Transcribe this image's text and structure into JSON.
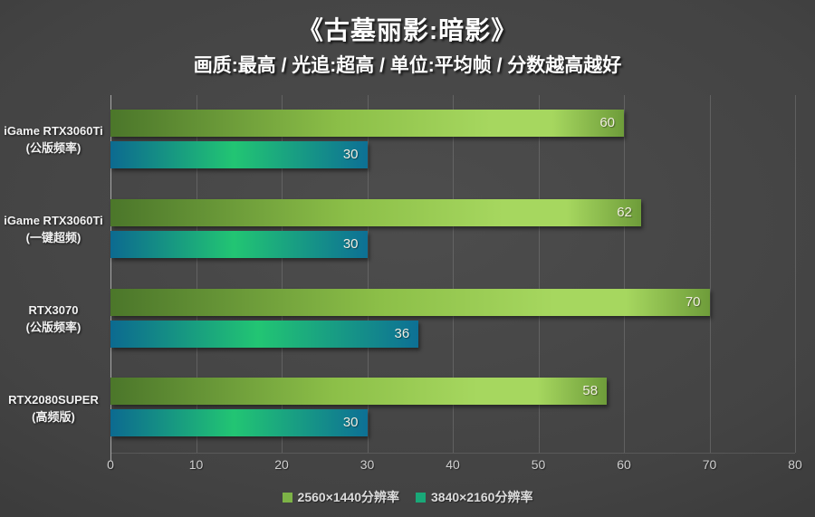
{
  "title": "《古墓丽影:暗影》",
  "subtitle": "画质:最高 / 光追:超高 / 单位:平均帧 / 分数越高越好",
  "chart_data": {
    "type": "bar",
    "orientation": "horizontal",
    "title": "《古墓丽影:暗影》",
    "subtitle": "画质:最高 / 光追:超高 / 单位:平均帧 / 分数越高越好",
    "xlim": [
      0,
      80
    ],
    "xticks": [
      0,
      10,
      20,
      30,
      40,
      50,
      60,
      70,
      80
    ],
    "grid": true,
    "legend_position": "bottom",
    "categories": [
      {
        "line1": "iGame RTX3060Ti",
        "line2": "(公版频率)"
      },
      {
        "line1": "iGame RTX3060Ti",
        "line2": "(一键超频)"
      },
      {
        "line1": "RTX3070",
        "line2": "(公版频率)"
      },
      {
        "line1": "RTX2080SUPER",
        "line2": "(高频版)"
      }
    ],
    "series": [
      {
        "name": "2560×1440分辨率",
        "values": [
          60,
          62,
          70,
          58
        ],
        "legend_color": "#7db347",
        "gradient": [
          "#4b762a",
          "#8cbf48",
          "#a6d75f",
          "#6e9c3a"
        ]
      },
      {
        "name": "3840×2160分辨率",
        "values": [
          30,
          30,
          36,
          30
        ],
        "legend_color": "#19a878",
        "gradient": [
          "#0c6a90",
          "#22c573",
          "#0d7095"
        ]
      }
    ]
  },
  "colors": {
    "background_center": "#4d4d4d",
    "background_edge": "#2b2b2b",
    "grid": "#828282",
    "axis": "#a8a8a8",
    "tick_label": "#cfcfcf",
    "value_label": "#f1ede1",
    "category_label": "#f2f2f2",
    "legend_text": "#dcdcdc",
    "title_text": "#ffffff"
  }
}
